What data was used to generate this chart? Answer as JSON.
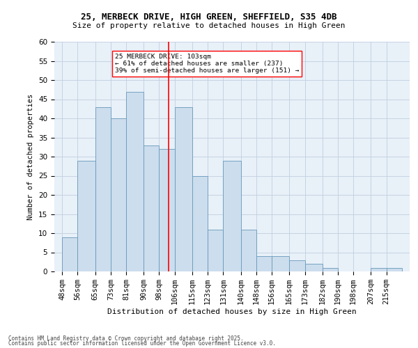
{
  "title1": "25, MERBECK DRIVE, HIGH GREEN, SHEFFIELD, S35 4DB",
  "title2": "Size of property relative to detached houses in High Green",
  "xlabel": "Distribution of detached houses by size in High Green",
  "ylabel": "Number of detached properties",
  "bar_left_edges": [
    48,
    56,
    65,
    73,
    81,
    90,
    98,
    106,
    115,
    123,
    131,
    140,
    148,
    156,
    165,
    173,
    182,
    190,
    198,
    207,
    215
  ],
  "bar_widths": [
    8,
    9,
    8,
    8,
    9,
    8,
    8,
    9,
    8,
    8,
    9,
    8,
    8,
    9,
    8,
    9,
    8,
    8,
    9,
    8,
    8
  ],
  "bar_heights": [
    9,
    29,
    43,
    40,
    47,
    33,
    32,
    43,
    25,
    11,
    29,
    11,
    4,
    4,
    3,
    2,
    1,
    0,
    0,
    1,
    1
  ],
  "bar_color": "#ccdded",
  "bar_edge_color": "#6699bb",
  "red_line_x": 103,
  "ylim": [
    0,
    60
  ],
  "yticks": [
    0,
    5,
    10,
    15,
    20,
    25,
    30,
    35,
    40,
    45,
    50,
    55,
    60
  ],
  "xtick_labels": [
    "48sqm",
    "56sqm",
    "65sqm",
    "73sqm",
    "81sqm",
    "90sqm",
    "98sqm",
    "106sqm",
    "115sqm",
    "123sqm",
    "131sqm",
    "140sqm",
    "148sqm",
    "156sqm",
    "165sqm",
    "173sqm",
    "182sqm",
    "190sqm",
    "198sqm",
    "207sqm",
    "215sqm"
  ],
  "xtick_positions": [
    48,
    56,
    65,
    73,
    81,
    90,
    98,
    106,
    115,
    123,
    131,
    140,
    148,
    156,
    165,
    173,
    182,
    190,
    198,
    207,
    215
  ],
  "annotation_title": "25 MERBECK DRIVE: 103sqm",
  "annotation_line1": "← 61% of detached houses are smaller (237)",
  "annotation_line2": "39% of semi-detached houses are larger (151) →",
  "grid_color": "#c0cfe0",
  "background_color": "#e8f0f8",
  "footnote1": "Contains HM Land Registry data © Crown copyright and database right 2025.",
  "footnote2": "Contains public sector information licensed under the Open Government Licence v3.0."
}
